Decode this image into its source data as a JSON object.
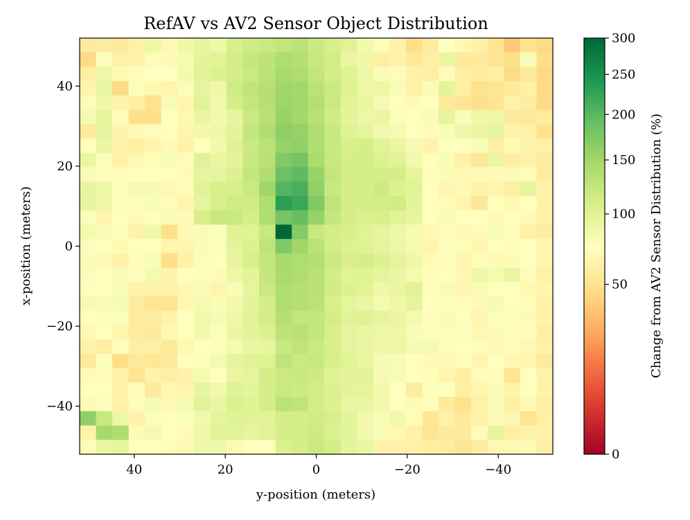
{
  "chart_data": {
    "type": "heatmap",
    "title": "RefAV vs AV2 Sensor Object Distribution",
    "xlabel": "y-position (meters)",
    "ylabel": "x-position (meters)",
    "xlim": [
      52,
      -52
    ],
    "ylim": [
      -52,
      52
    ],
    "grid": false,
    "x_ticks": [
      40,
      20,
      0,
      -20,
      -40
    ],
    "x_tick_labels": [
      "40",
      "20",
      "0",
      "−20",
      "−40"
    ],
    "y_ticks": [
      40,
      20,
      0,
      -20,
      -40
    ],
    "y_tick_labels": [
      "40",
      "20",
      "0",
      "−20",
      "−40"
    ],
    "bin_size_m": 4,
    "colormap": "RdYlGn",
    "colorbar": {
      "label": "Change from AV2 Sensor Distribution (%)",
      "scale": "sqrt",
      "range": [
        0,
        300
      ],
      "ticks": [
        0,
        50,
        100,
        150,
        200,
        250,
        300
      ],
      "tick_labels": [
        "0",
        "50",
        "100",
        "150",
        "200",
        "250",
        "300"
      ]
    },
    "grid_note": "values[row][col]: row 0 = top (x=+50), col 0 = left (y=+50); units = % of AV2 distribution",
    "values": [
      [
        56,
        58,
        56,
        62,
        90,
        68,
        88,
        95,
        88,
        108,
        115,
        118,
        125,
        130,
        118,
        108,
        100,
        85,
        72,
        62,
        48,
        58,
        75,
        68,
        62,
        52,
        38,
        50,
        45
      ],
      [
        45,
        78,
        62,
        64,
        72,
        70,
        82,
        98,
        100,
        112,
        122,
        128,
        140,
        135,
        120,
        112,
        92,
        88,
        60,
        64,
        55,
        60,
        92,
        56,
        56,
        52,
        48,
        80,
        48
      ],
      [
        60,
        88,
        70,
        72,
        75,
        75,
        85,
        100,
        104,
        110,
        118,
        130,
        145,
        140,
        125,
        112,
        102,
        90,
        80,
        72,
        62,
        60,
        72,
        60,
        58,
        60,
        46,
        55,
        45
      ],
      [
        65,
        92,
        46,
        78,
        68,
        66,
        78,
        96,
        88,
        115,
        126,
        134,
        150,
        148,
        130,
        118,
        104,
        90,
        90,
        80,
        62,
        80,
        98,
        60,
        50,
        52,
        56,
        62,
        46
      ],
      [
        72,
        88,
        64,
        60,
        50,
        80,
        66,
        100,
        86,
        110,
        124,
        134,
        152,
        148,
        136,
        118,
        100,
        92,
        82,
        74,
        70,
        75,
        55,
        52,
        48,
        52,
        62,
        58,
        46
      ],
      [
        84,
        96,
        72,
        48,
        48,
        76,
        68,
        92,
        86,
        94,
        118,
        132,
        156,
        148,
        132,
        114,
        98,
        90,
        92,
        78,
        74,
        80,
        96,
        80,
        88,
        90,
        56,
        55,
        58
      ],
      [
        56,
        96,
        65,
        70,
        78,
        74,
        66,
        86,
        88,
        98,
        124,
        138,
        164,
        158,
        138,
        120,
        102,
        96,
        86,
        84,
        74,
        72,
        80,
        88,
        92,
        94,
        64,
        62,
        50
      ],
      [
        74,
        92,
        62,
        60,
        66,
        70,
        64,
        76,
        86,
        102,
        118,
        130,
        158,
        160,
        138,
        120,
        108,
        110,
        100,
        92,
        82,
        64,
        76,
        74,
        80,
        60,
        70,
        64,
        62
      ],
      [
        92,
        78,
        64,
        68,
        72,
        80,
        72,
        100,
        92,
        98,
        120,
        132,
        172,
        180,
        142,
        120,
        110,
        112,
        104,
        100,
        86,
        76,
        80,
        62,
        54,
        92,
        60,
        62,
        58
      ],
      [
        80,
        72,
        72,
        74,
        74,
        74,
        70,
        94,
        96,
        104,
        124,
        138,
        186,
        196,
        156,
        124,
        112,
        112,
        112,
        110,
        96,
        72,
        80,
        70,
        70,
        70,
        80,
        72,
        58
      ],
      [
        94,
        90,
        78,
        84,
        82,
        68,
        72,
        100,
        108,
        108,
        118,
        150,
        202,
        210,
        160,
        120,
        110,
        110,
        116,
        104,
        100,
        74,
        66,
        70,
        64,
        66,
        60,
        95,
        64
      ],
      [
        96,
        90,
        72,
        72,
        80,
        72,
        66,
        94,
        108,
        115,
        115,
        138,
        232,
        220,
        172,
        126,
        112,
        112,
        112,
        114,
        98,
        74,
        72,
        66,
        54,
        74,
        68,
        74,
        62
      ],
      [
        78,
        66,
        74,
        70,
        76,
        80,
        70,
        108,
        120,
        118,
        110,
        140,
        180,
        190,
        158,
        122,
        110,
        106,
        108,
        100,
        95,
        74,
        80,
        74,
        74,
        70,
        74,
        70,
        62
      ],
      [
        85,
        80,
        78,
        64,
        88,
        48,
        70,
        80,
        78,
        102,
        100,
        120,
        300,
        170,
        120,
        112,
        108,
        100,
        96,
        88,
        82,
        68,
        72,
        68,
        70,
        80,
        72,
        62,
        58
      ],
      [
        78,
        76,
        70,
        74,
        76,
        66,
        66,
        80,
        78,
        98,
        104,
        126,
        172,
        150,
        130,
        112,
        104,
        102,
        96,
        90,
        84,
        66,
        78,
        72,
        66,
        74,
        72,
        76,
        66
      ],
      [
        80,
        68,
        62,
        72,
        80,
        48,
        62,
        78,
        76,
        94,
        108,
        124,
        146,
        140,
        136,
        118,
        108,
        110,
        104,
        96,
        88,
        70,
        72,
        66,
        72,
        70,
        70,
        74,
        66
      ],
      [
        78,
        74,
        80,
        72,
        84,
        64,
        74,
        78,
        70,
        90,
        98,
        122,
        144,
        140,
        132,
        112,
        100,
        102,
        96,
        92,
        84,
        72,
        76,
        68,
        88,
        84,
        92,
        72,
        62
      ],
      [
        74,
        76,
        80,
        64,
        64,
        64,
        68,
        80,
        66,
        80,
        96,
        118,
        140,
        134,
        132,
        114,
        104,
        100,
        88,
        92,
        100,
        78,
        80,
        66,
        80,
        74,
        76,
        68,
        66
      ],
      [
        82,
        80,
        82,
        58,
        52,
        52,
        68,
        84,
        80,
        86,
        98,
        110,
        138,
        134,
        130,
        108,
        96,
        92,
        84,
        88,
        96,
        74,
        72,
        72,
        70,
        82,
        74,
        72,
        62
      ],
      [
        74,
        78,
        78,
        58,
        58,
        64,
        74,
        86,
        82,
        90,
        100,
        112,
        134,
        124,
        124,
        112,
        100,
        102,
        96,
        92,
        84,
        72,
        80,
        76,
        66,
        78,
        78,
        70,
        64
      ],
      [
        68,
        76,
        66,
        58,
        56,
        68,
        74,
        86,
        78,
        92,
        98,
        104,
        128,
        132,
        124,
        108,
        96,
        92,
        90,
        90,
        80,
        72,
        72,
        78,
        68,
        70,
        72,
        72,
        60
      ],
      [
        62,
        60,
        74,
        60,
        60,
        56,
        68,
        76,
        78,
        84,
        92,
        94,
        120,
        126,
        118,
        108,
        96,
        92,
        88,
        90,
        82,
        84,
        78,
        76,
        72,
        68,
        72,
        68,
        62
      ],
      [
        56,
        78,
        48,
        56,
        54,
        56,
        74,
        78,
        84,
        96,
        100,
        102,
        126,
        118,
        120,
        108,
        100,
        92,
        82,
        80,
        74,
        70,
        68,
        72,
        66,
        76,
        68,
        66,
        56
      ],
      [
        70,
        72,
        64,
        52,
        64,
        60,
        64,
        82,
        74,
        92,
        96,
        112,
        118,
        120,
        116,
        102,
        98,
        100,
        82,
        80,
        74,
        72,
        66,
        60,
        72,
        72,
        52,
        76,
        64
      ],
      [
        74,
        74,
        64,
        72,
        56,
        68,
        66,
        94,
        86,
        102,
        98,
        110,
        118,
        116,
        112,
        104,
        98,
        96,
        86,
        76,
        58,
        78,
        76,
        60,
        66,
        80,
        64,
        76,
        64
      ],
      [
        70,
        78,
        62,
        72,
        82,
        68,
        84,
        100,
        92,
        106,
        102,
        110,
        130,
        126,
        112,
        104,
        92,
        92,
        86,
        76,
        70,
        72,
        56,
        50,
        62,
        80,
        60,
        70,
        60
      ],
      [
        162,
        120,
        90,
        64,
        78,
        74,
        78,
        86,
        96,
        102,
        100,
        100,
        112,
        112,
        114,
        108,
        98,
        86,
        80,
        86,
        72,
        54,
        62,
        56,
        64,
        70,
        66,
        52,
        62
      ],
      [
        64,
        146,
        140,
        70,
        84,
        74,
        70,
        88,
        100,
        100,
        96,
        100,
        110,
        112,
        116,
        104,
        98,
        86,
        80,
        68,
        62,
        52,
        56,
        56,
        72,
        96,
        60,
        64,
        62
      ],
      [
        72,
        92,
        96,
        74,
        74,
        72,
        68,
        88,
        88,
        80,
        74,
        74,
        104,
        110,
        118,
        112,
        98,
        92,
        64,
        64,
        62,
        60,
        58,
        52,
        58,
        68,
        68,
        70,
        60
      ]
    ]
  }
}
